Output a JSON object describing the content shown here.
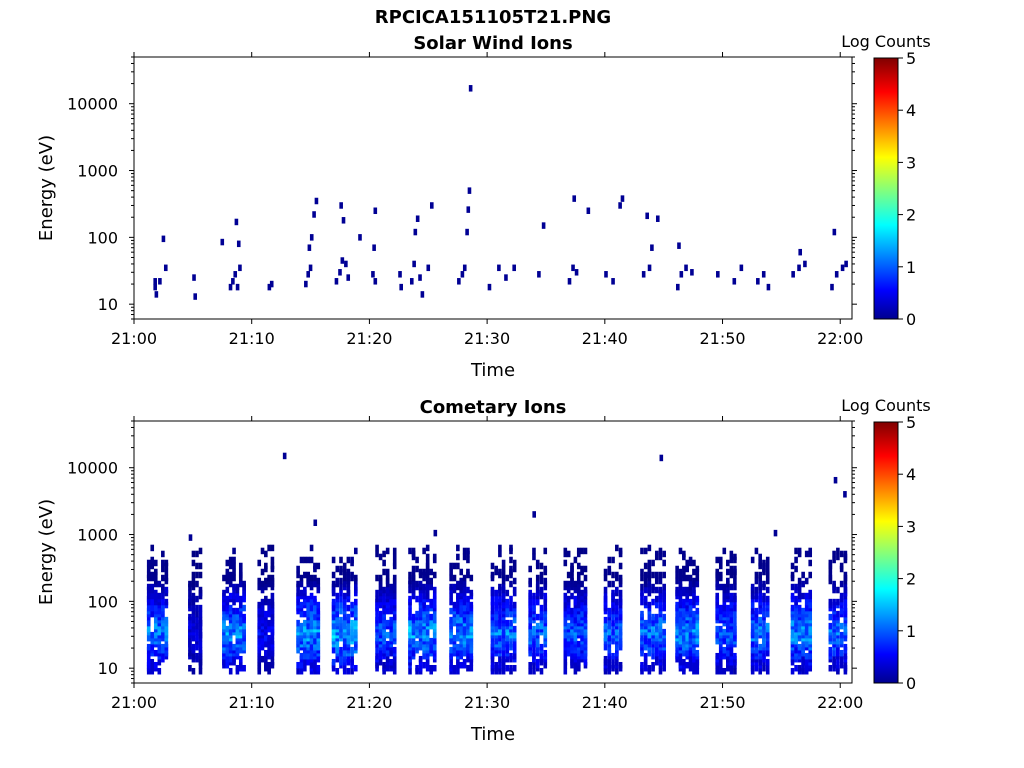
{
  "figure": {
    "filename": "RPCICA151105T21.PNG"
  },
  "colorbar": {
    "label": "Log Counts",
    "ticks": [
      0,
      1,
      2,
      3,
      4,
      5
    ],
    "colormap": "jet",
    "range": [
      0,
      5
    ]
  },
  "chart_data": [
    {
      "type": "heatmap",
      "title": "Solar Wind Ions",
      "xlabel": "Time",
      "ylabel": "Energy (eV)",
      "yscale": "log",
      "ylim": [
        6,
        50000
      ],
      "xlim": [
        "21:00",
        "22:01"
      ],
      "xticks": [
        "21:00",
        "21:10",
        "21:20",
        "21:30",
        "21:40",
        "21:50",
        "22:00"
      ],
      "yticks": [
        10,
        100,
        1000,
        10000
      ],
      "ytick_labels": [
        "10",
        "100",
        "1000",
        "10000"
      ],
      "cells_note": "Each cell: [minutes after 21:00, energy eV, log counts]",
      "cells": [
        [
          1.8,
          22,
          0.1
        ],
        [
          1.8,
          18,
          0.1
        ],
        [
          1.9,
          14,
          0.1
        ],
        [
          2.2,
          22,
          0.1
        ],
        [
          2.7,
          35,
          0.1
        ],
        [
          2.5,
          95,
          0.1
        ],
        [
          5.1,
          25,
          0.1
        ],
        [
          5.2,
          13,
          0.1
        ],
        [
          7.5,
          85,
          0.1
        ],
        [
          8.2,
          18,
          0.1
        ],
        [
          8.4,
          22,
          0.1
        ],
        [
          8.6,
          28,
          0.1
        ],
        [
          8.8,
          18,
          0.1
        ],
        [
          9.0,
          35,
          0.1
        ],
        [
          8.9,
          80,
          0.1
        ],
        [
          8.7,
          170,
          0.1
        ],
        [
          11.5,
          18,
          0.1
        ],
        [
          11.7,
          20,
          0.1
        ],
        [
          14.6,
          20,
          0.1
        ],
        [
          14.8,
          28,
          0.1
        ],
        [
          15.0,
          35,
          0.1
        ],
        [
          14.9,
          70,
          0.1
        ],
        [
          15.1,
          100,
          0.1
        ],
        [
          15.3,
          220,
          0.1
        ],
        [
          15.5,
          350,
          0.1
        ],
        [
          17.2,
          22,
          0.1
        ],
        [
          17.5,
          30,
          0.1
        ],
        [
          17.7,
          45,
          0.1
        ],
        [
          18.0,
          40,
          0.1
        ],
        [
          18.2,
          25,
          0.1
        ],
        [
          17.6,
          300,
          0.1
        ],
        [
          17.8,
          180,
          0.1
        ],
        [
          19.2,
          100,
          0.1
        ],
        [
          20.3,
          28,
          0.1
        ],
        [
          20.5,
          22,
          0.1
        ],
        [
          20.4,
          70,
          0.1
        ],
        [
          20.5,
          250,
          0.1
        ],
        [
          22.6,
          28,
          0.1
        ],
        [
          22.7,
          18,
          0.1
        ],
        [
          23.6,
          22,
          0.1
        ],
        [
          23.8,
          40,
          0.1
        ],
        [
          23.9,
          120,
          0.1
        ],
        [
          24.1,
          190,
          0.1
        ],
        [
          24.3,
          25,
          0.1
        ],
        [
          24.5,
          14,
          0.1
        ],
        [
          25.0,
          35,
          0.1
        ],
        [
          25.3,
          300,
          0.1
        ],
        [
          27.6,
          22,
          0.1
        ],
        [
          27.9,
          28,
          0.1
        ],
        [
          28.1,
          35,
          0.1
        ],
        [
          28.3,
          120,
          0.1
        ],
        [
          28.4,
          260,
          0.1
        ],
        [
          28.5,
          500,
          0.1
        ],
        [
          28.6,
          17000,
          0.1
        ],
        [
          30.2,
          18,
          0.1
        ],
        [
          31.0,
          35,
          0.1
        ],
        [
          31.6,
          25,
          0.1
        ],
        [
          32.3,
          35,
          0.1
        ],
        [
          34.4,
          28,
          0.1
        ],
        [
          34.8,
          150,
          0.1
        ],
        [
          37.0,
          22,
          0.1
        ],
        [
          37.3,
          35,
          0.1
        ],
        [
          37.6,
          30,
          0.1
        ],
        [
          37.4,
          380,
          0.1
        ],
        [
          38.6,
          250,
          0.1
        ],
        [
          40.1,
          28,
          0.1
        ],
        [
          40.7,
          22,
          0.1
        ],
        [
          41.3,
          300,
          0.1
        ],
        [
          41.5,
          380,
          0.1
        ],
        [
          43.3,
          28,
          0.1
        ],
        [
          43.8,
          35,
          0.1
        ],
        [
          43.6,
          210,
          0.1
        ],
        [
          44.5,
          190,
          0.1
        ],
        [
          44.0,
          70,
          0.1
        ],
        [
          46.2,
          18,
          0.1
        ],
        [
          46.5,
          28,
          0.1
        ],
        [
          46.9,
          35,
          0.1
        ],
        [
          47.4,
          30,
          0.1
        ],
        [
          46.3,
          75,
          0.1
        ],
        [
          49.6,
          28,
          0.1
        ],
        [
          51.0,
          22,
          0.1
        ],
        [
          51.6,
          35,
          0.1
        ],
        [
          53.0,
          22,
          0.1
        ],
        [
          53.5,
          28,
          0.1
        ],
        [
          53.9,
          18,
          0.1
        ],
        [
          56.0,
          28,
          0.1
        ],
        [
          56.5,
          35,
          0.1
        ],
        [
          57.0,
          40,
          0.1
        ],
        [
          56.6,
          60,
          0.1
        ],
        [
          59.3,
          18,
          0.1
        ],
        [
          59.7,
          28,
          0.1
        ],
        [
          60.2,
          35,
          0.1
        ],
        [
          60.5,
          40,
          0.1
        ],
        [
          59.5,
          120,
          0.1
        ]
      ]
    },
    {
      "type": "heatmap",
      "title": "Cometary Ions",
      "xlabel": "Time",
      "ylabel": "Energy (eV)",
      "yscale": "log",
      "ylim": [
        6,
        50000
      ],
      "xlim": [
        "21:00",
        "22:01"
      ],
      "xticks": [
        "21:00",
        "21:10",
        "21:20",
        "21:30",
        "21:40",
        "21:50",
        "22:00"
      ],
      "yticks": [
        10,
        100,
        1000,
        10000
      ],
      "ytick_labels": [
        "10",
        "100",
        "1000",
        "10000"
      ],
      "columns_note": "Each column group: [center minutes after 21:00, width minutes, peak log counts]",
      "columns": [
        [
          2.0,
          1.8,
          1.5
        ],
        [
          5.2,
          1.2,
          0.6
        ],
        [
          8.5,
          2.0,
          1.6
        ],
        [
          11.2,
          1.4,
          0.8
        ],
        [
          14.8,
          2.0,
          1.7
        ],
        [
          17.9,
          2.2,
          1.8
        ],
        [
          21.4,
          1.8,
          1.3
        ],
        [
          24.5,
          2.4,
          1.7
        ],
        [
          27.8,
          2.0,
          1.6
        ],
        [
          31.4,
          2.2,
          1.5
        ],
        [
          34.3,
          1.6,
          1.4
        ],
        [
          37.5,
          2.0,
          1.3
        ],
        [
          40.7,
          1.6,
          1.3
        ],
        [
          44.1,
          2.2,
          1.5
        ],
        [
          47.0,
          2.0,
          1.6
        ],
        [
          50.3,
          1.8,
          1.3
        ],
        [
          53.2,
          1.6,
          1.5
        ],
        [
          56.7,
          1.8,
          1.6
        ],
        [
          59.8,
          1.6,
          1.4
        ]
      ],
      "sparse_points": [
        [
          12.8,
          15000,
          0.1
        ],
        [
          15.4,
          1500,
          0.1
        ],
        [
          44.8,
          14000,
          0.1
        ],
        [
          34.0,
          2000,
          0.1
        ],
        [
          59.6,
          6500,
          0.1
        ],
        [
          60.4,
          4000,
          0.1
        ],
        [
          25.6,
          1050,
          0.1
        ],
        [
          54.5,
          1050,
          0.1
        ],
        [
          4.8,
          900,
          0.1
        ]
      ]
    }
  ]
}
